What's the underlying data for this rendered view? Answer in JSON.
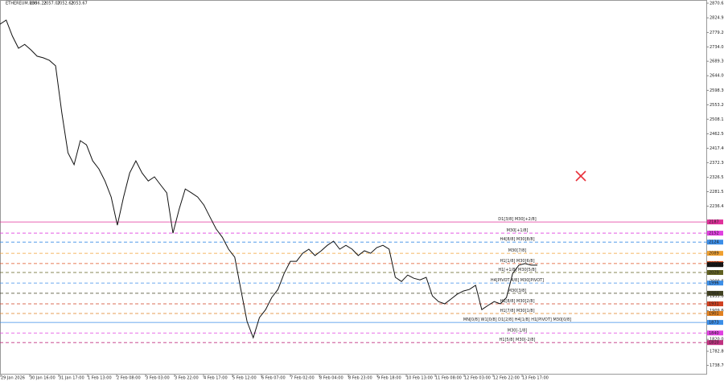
{
  "chart_data": {
    "type": "line",
    "symbol": "ETHEREUM.R30",
    "ohlc": [
      2056.22,
      2057.07,
      2052.62,
      2053.67
    ],
    "color": "#111111",
    "ylim": [
      1710,
      2880.7
    ],
    "yticks": [
      {
        "value": 2870.65,
        "label": "2870.65"
      },
      {
        "value": 2824.95,
        "label": "2824.95"
      },
      {
        "value": 2779.2,
        "label": "2779.20"
      },
      {
        "value": 2734.05,
        "label": "2734.05"
      },
      {
        "value": 2689.3,
        "label": "2689.30"
      },
      {
        "value": 2644.0,
        "label": "2644.00"
      },
      {
        "value": 2598.3,
        "label": "2598.30"
      },
      {
        "value": 2553.2,
        "label": "2553.20"
      },
      {
        "value": 2508.15,
        "label": "2508.15"
      },
      {
        "value": 2462.5,
        "label": "2462.50"
      },
      {
        "value": 2417.4,
        "label": "2417.40"
      },
      {
        "value": 2372.3,
        "label": "2372.30"
      },
      {
        "value": 2326.55,
        "label": "2326.55"
      },
      {
        "value": 2281.55,
        "label": "2281.55"
      },
      {
        "value": 2236.45,
        "label": "2236.45"
      },
      {
        "value": 2000.85,
        "label": "2000.85"
      },
      {
        "value": 1955.0,
        "label": "1955.00"
      },
      {
        "value": 1909.6,
        "label": "1909.60"
      },
      {
        "value": 1820.05,
        "label": "1820.05"
      },
      {
        "value": 1782.8,
        "label": "1782.80"
      },
      {
        "value": 1738.7,
        "label": "1738.70"
      }
    ],
    "xlabels": [
      "29 Jan 2026",
      "30 Jan 16:00",
      "31 Jan 17:00",
      "1 Feb 13:00",
      "2 Feb 08:00",
      "3 Feb 03:00",
      "3 Feb 22:00",
      "4 Feb 17:00",
      "5 Feb 12:00",
      "6 Feb 07:00",
      "7 Feb 02:00",
      "8 Feb 04:00",
      "8 Feb 23:00",
      "9 Feb 18:00",
      "10 Feb 13:00",
      "11 Feb 08:00",
      "12 Feb 03:00",
      "12 Feb 22:00",
      "13 Feb 17:00"
    ],
    "values": [
      2805,
      2818,
      2768,
      2730,
      2742,
      2725,
      2705,
      2700,
      2692,
      2675,
      2529,
      2403,
      2366,
      2441,
      2428,
      2378,
      2353,
      2315,
      2265,
      2177,
      2265,
      2340,
      2378,
      2340,
      2315,
      2328,
      2303,
      2278,
      2152,
      2227,
      2290,
      2278,
      2265,
      2240,
      2202,
      2165,
      2139,
      2102,
      2077,
      1976,
      1876,
      1825,
      1888,
      1913,
      1951,
      1976,
      2026,
      2064,
      2064,
      2089,
      2102,
      2082,
      2097,
      2114,
      2127,
      2102,
      2114,
      2102,
      2082,
      2097,
      2089,
      2107,
      2114,
      2102,
      2014,
      2001,
      2021,
      2011,
      2006,
      2014,
      1956,
      1938,
      1931,
      1946,
      1961,
      1971,
      1976,
      1989,
      1913,
      1926,
      1938,
      1931,
      1951,
      2026,
      2052,
      2057,
      2052,
      2052
    ],
    "levels": [
      {
        "label": "D1[3/8] M30[+2/8]",
        "price": 2187,
        "color": "#e0309a",
        "dash": false
      },
      {
        "label": "M30[+1/8]",
        "price": 2152,
        "color": "#e040e0",
        "dash": true
      },
      {
        "label": "H4[8/8] M30[8/8]",
        "price": 2124,
        "color": "#3b8ee8",
        "dash": true
      },
      {
        "label": "M30[7/8]",
        "price": 2089,
        "color": "#f0a030",
        "dash": true
      },
      {
        "label": "H1[1/8] M30[6/8]",
        "price": 2057,
        "color": "#e05020",
        "dash": true
      },
      {
        "label": "H1[+1/8] M30[5/8]",
        "price": 2029,
        "color": "#606020",
        "dash": true
      },
      {
        "label": "H4[PIVOT 4/8] M30[PIVOT]",
        "price": 1996,
        "color": "#3b8ee8",
        "dash": true
      },
      {
        "label": "M30[3/8]",
        "price": 1964,
        "color": "#404020",
        "dash": true
      },
      {
        "label": "H1[8/8] M30[2/8]",
        "price": 1931,
        "color": "#d04020",
        "dash": true
      },
      {
        "label": "H1[7/8] M30[1/8]",
        "price": 1901,
        "color": "#e08020",
        "dash": true
      },
      {
        "label": "MN[0/8] W1[0/8] D1[2/8] H4[1/8] H1[PIVOT] M30[0/8]",
        "price": 1873,
        "color": "#3b8ee8",
        "dash": false
      },
      {
        "label": "M30[-1/8]",
        "price": 1840,
        "color": "#e040e0",
        "dash": true
      },
      {
        "label": "H1[5/8] M30[-2/8]",
        "price": 1810,
        "color": "#c03080",
        "dash": true
      }
    ]
  }
}
